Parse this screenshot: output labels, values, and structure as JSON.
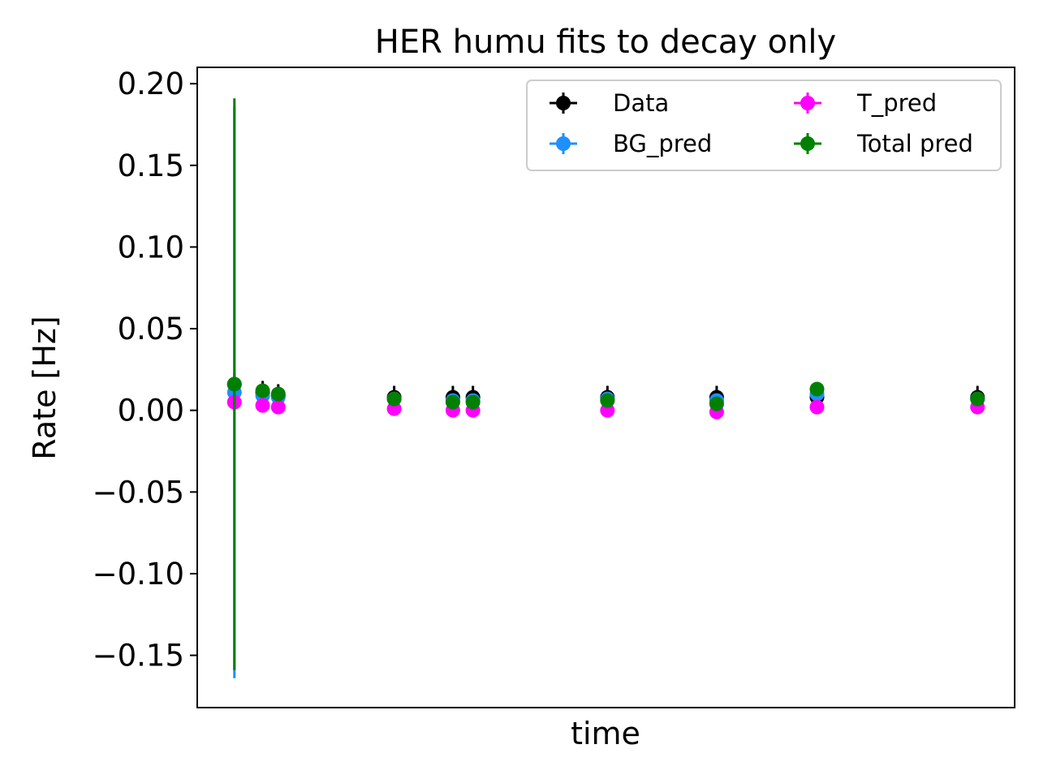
{
  "chart_data": {
    "type": "scatter",
    "title": "HER humu fits to decay only",
    "xlabel": "time",
    "ylabel": "Rate [Hz]",
    "ylim": [
      -0.182,
      0.21
    ],
    "xlim": [
      -0.05,
      1.05
    ],
    "x_ticks_shown": false,
    "y_ticks": [
      -0.15,
      -0.1,
      -0.05,
      0.0,
      0.05,
      0.1,
      0.15,
      0.2
    ],
    "y_tick_labels": [
      "−0.15",
      "−0.10",
      "−0.05",
      "0.00",
      "0.05",
      "0.10",
      "0.15",
      "0.20"
    ],
    "grid": false,
    "legend_position": "top-right",
    "x": [
      0.0,
      0.038,
      0.059,
      0.215,
      0.294,
      0.321,
      0.502,
      0.649,
      0.784,
      1.0
    ],
    "series": [
      {
        "name": "Data",
        "color": "#000000",
        "values": [
          0.016,
          0.011,
          0.009,
          0.008,
          0.008,
          0.008,
          0.008,
          0.008,
          0.008,
          0.008
        ],
        "yerr": [
          0.007,
          0.007,
          0.007,
          0.007,
          0.007,
          0.007,
          0.007,
          0.007,
          0.007,
          0.007
        ]
      },
      {
        "name": "BG_pred",
        "color": "#1e90ff",
        "values": [
          0.011,
          0.009,
          0.008,
          0.007,
          0.006,
          0.006,
          0.007,
          0.006,
          0.01,
          0.007
        ],
        "yerr": [
          0.175,
          0.001,
          0.001,
          0.001,
          0.001,
          0.001,
          0.001,
          0.001,
          0.001,
          0.001
        ]
      },
      {
        "name": "T_pred",
        "color": "#ff00ff",
        "values": [
          0.005,
          0.003,
          0.002,
          0.001,
          0.0,
          0.0,
          0.0,
          -0.001,
          0.002,
          0.002
        ],
        "yerr": [
          0.001,
          0.001,
          0.001,
          0.001,
          0.001,
          0.001,
          0.001,
          0.001,
          0.001,
          0.001
        ]
      },
      {
        "name": "Total pred",
        "color": "#008000",
        "values": [
          0.016,
          0.012,
          0.01,
          0.007,
          0.005,
          0.005,
          0.006,
          0.004,
          0.013,
          0.007
        ],
        "yerr": [
          0.175,
          0.001,
          0.001,
          0.001,
          0.001,
          0.001,
          0.001,
          0.001,
          0.001,
          0.001
        ]
      }
    ]
  }
}
